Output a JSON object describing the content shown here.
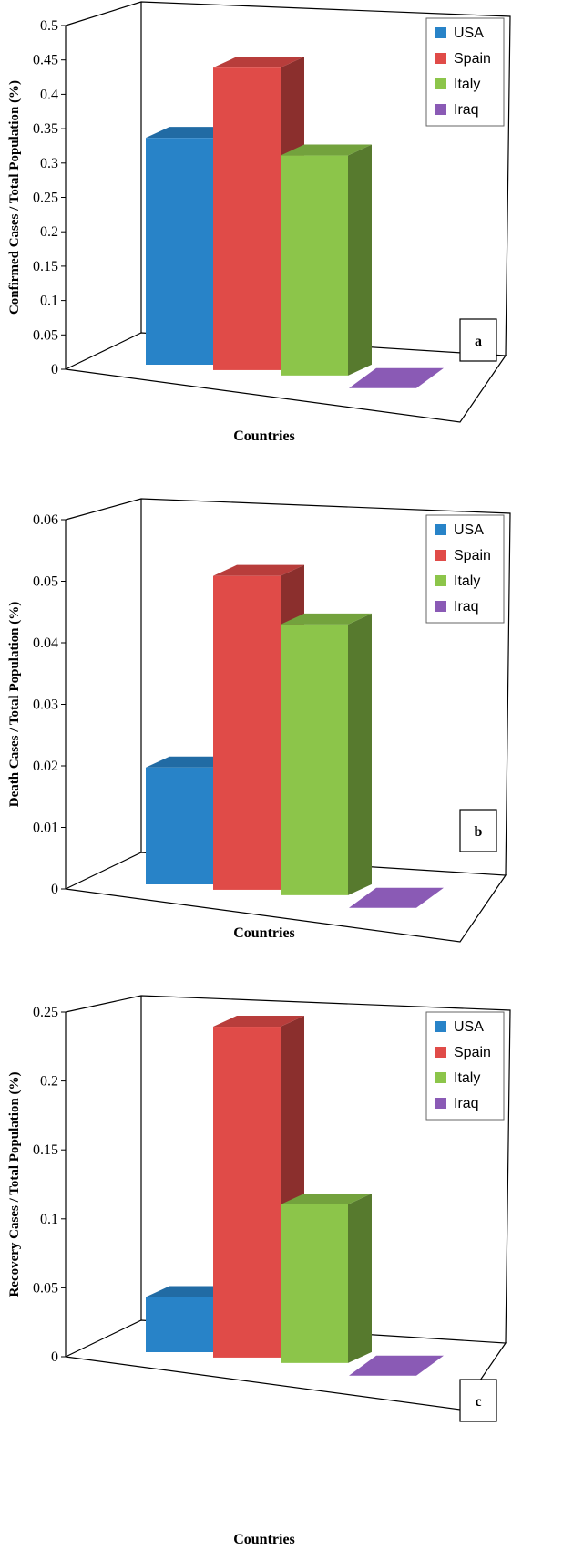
{
  "colors": {
    "USA": "#2883C8",
    "Spain": "#E04B48",
    "Italy": "#8CC54A",
    "Iraq": "#8A5AB5"
  },
  "chart_data": [
    {
      "type": "bar",
      "panel": "a",
      "categories": [
        "USA",
        "Spain",
        "Italy",
        "Iraq"
      ],
      "values": [
        0.33,
        0.44,
        0.32,
        0.0
      ],
      "ylabel": "Confirmed Cases / Total Population (%)",
      "xlabel": "Countries",
      "ylim": [
        0,
        0.5
      ],
      "yticks": [
        "0",
        "0.05",
        "0.1",
        "0.15",
        "0.2",
        "0.25",
        "0.3",
        "0.35",
        "0.4",
        "0.45",
        "0.5"
      ],
      "legend": [
        "USA",
        "Spain",
        "Italy",
        "Iraq"
      ],
      "legend_position": "top-right",
      "grid": false
    },
    {
      "type": "bar",
      "panel": "b",
      "categories": [
        "USA",
        "Spain",
        "Italy",
        "Iraq"
      ],
      "values": [
        0.019,
        0.051,
        0.044,
        0.0
      ],
      "ylabel": "Death Cases / Total Population (%)",
      "xlabel": "Countries",
      "ylim": [
        0,
        0.06
      ],
      "yticks": [
        "0",
        "0.01",
        "0.02",
        "0.03",
        "0.04",
        "0.05",
        "0.06"
      ],
      "legend": [
        "USA",
        "Spain",
        "Italy",
        "Iraq"
      ],
      "legend_position": "top-right",
      "grid": false
    },
    {
      "type": "bar",
      "panel": "c",
      "categories": [
        "USA",
        "Spain",
        "Italy",
        "Iraq"
      ],
      "values": [
        0.04,
        0.24,
        0.115,
        0.0
      ],
      "ylabel": "Recovery Cases / Total Population (%)",
      "xlabel": "Countries",
      "ylim": [
        0,
        0.25
      ],
      "yticks": [
        "0",
        "0.05",
        "0.1",
        "0.15",
        "0.2",
        "0.25"
      ],
      "legend": [
        "USA",
        "Spain",
        "Italy",
        "Iraq"
      ],
      "legend_position": "top-right",
      "grid": false
    }
  ]
}
